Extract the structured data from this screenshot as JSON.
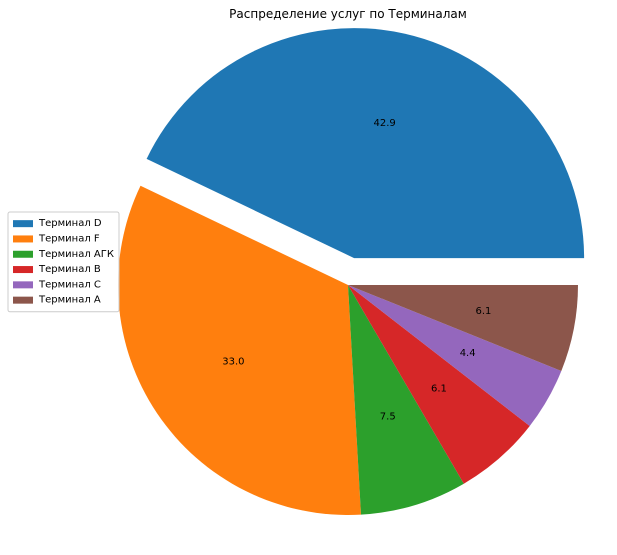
{
  "chart_data": {
    "type": "pie",
    "title": "Распределение услуг по Терминалам",
    "categories": [
      "Терминал D",
      "Терминал F",
      "Терминал АГК",
      "Терминал B",
      "Терминал C",
      "Терминал A"
    ],
    "values": [
      42.9,
      33.0,
      7.5,
      6.1,
      4.4,
      6.1
    ],
    "labels": [
      "42.9",
      "33.0",
      "7.5",
      "6.1",
      "4.4",
      "6.1"
    ],
    "colors": [
      "#1f77b4",
      "#ff7f0e",
      "#2ca02c",
      "#d62728",
      "#9467bd",
      "#8c564b"
    ],
    "exploded": [
      "Терминал D"
    ],
    "start_angle_deg": 0,
    "direction": "counterclockwise",
    "legend_position": "center-left"
  }
}
